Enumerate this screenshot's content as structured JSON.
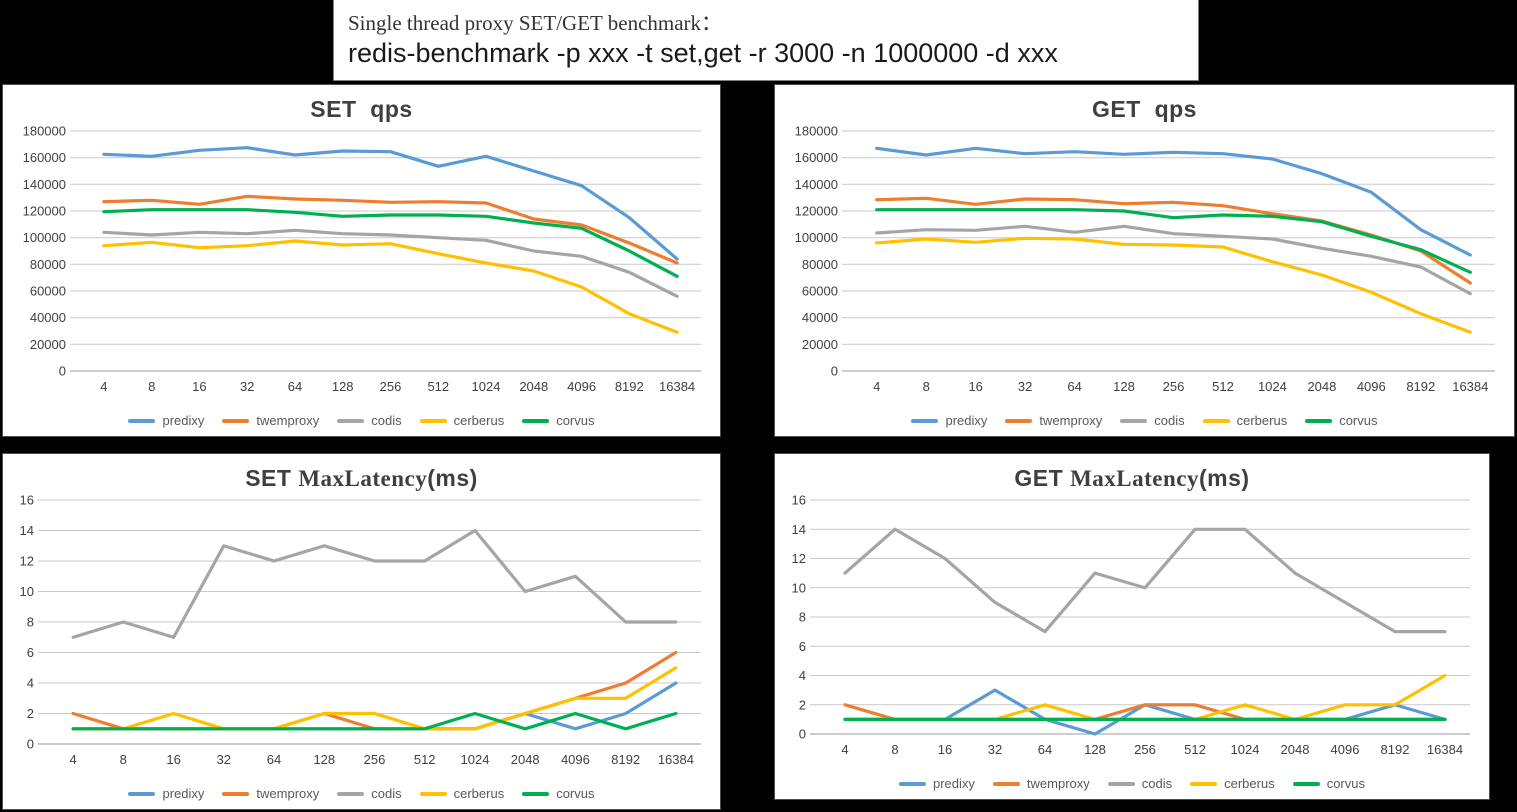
{
  "header": {
    "line1": "Single thread proxy SET/GET benchmark：",
    "line2": "redis-benchmark -p xxx -t set,get -r 3000 -n 1000000 -d xxx"
  },
  "style": {
    "background": "#000000",
    "panel_background": "#ffffff",
    "gridline_color": "#c9c9c9",
    "axis_color": "#9a9a9a",
    "text_color": "#404040",
    "series_colors": {
      "predixy": "#5B9BD5",
      "twemproxy": "#ED7D31",
      "codis": "#A5A5A5",
      "cerberus": "#FFC000",
      "corvus": "#00B050"
    }
  },
  "chart_data": [
    {
      "type": "line",
      "title_parts": [
        "SET  qps",
        "",
        ""
      ],
      "categories": [
        "4",
        "8",
        "16",
        "32",
        "64",
        "128",
        "256",
        "512",
        "1024",
        "2048",
        "4096",
        "8192",
        "16384"
      ],
      "xlabel": "",
      "ylabel": "",
      "ylim": [
        0,
        180000
      ],
      "ystep": 20000,
      "grid": true,
      "legend_position": "bottom",
      "series": [
        {
          "name": "predixy",
          "color": "#5B9BD5",
          "values": [
            162500,
            161000,
            165500,
            167500,
            162000,
            165000,
            164500,
            153500,
            161000,
            150000,
            139000,
            115000,
            84000
          ]
        },
        {
          "name": "twemproxy",
          "color": "#ED7D31",
          "values": [
            127000,
            128000,
            125000,
            131000,
            129000,
            128000,
            126500,
            127000,
            126000,
            114000,
            109500,
            96000,
            81000
          ]
        },
        {
          "name": "codis",
          "color": "#A5A5A5",
          "values": [
            104000,
            102000,
            104000,
            103000,
            105500,
            103000,
            102000,
            100000,
            98000,
            90000,
            86000,
            74000,
            56000
          ]
        },
        {
          "name": "cerberus",
          "color": "#FFC000",
          "values": [
            94000,
            96500,
            92500,
            94000,
            97500,
            94500,
            95500,
            88000,
            81000,
            75000,
            63000,
            43000,
            29000
          ]
        },
        {
          "name": "corvus",
          "color": "#00B050",
          "values": [
            119500,
            121000,
            121000,
            121000,
            119000,
            116000,
            117000,
            117000,
            116000,
            111000,
            107000,
            90000,
            71000
          ]
        }
      ]
    },
    {
      "type": "line",
      "title_parts": [
        "GET  qps",
        "",
        ""
      ],
      "categories": [
        "4",
        "8",
        "16",
        "32",
        "64",
        "128",
        "256",
        "512",
        "1024",
        "2048",
        "4096",
        "8192",
        "16384"
      ],
      "xlabel": "",
      "ylabel": "",
      "ylim": [
        0,
        180000
      ],
      "ystep": 20000,
      "grid": true,
      "legend_position": "bottom",
      "series": [
        {
          "name": "predixy",
          "color": "#5B9BD5",
          "values": [
            167000,
            162000,
            167000,
            163000,
            164500,
            162500,
            164000,
            163000,
            159000,
            148000,
            134000,
            106000,
            87000
          ]
        },
        {
          "name": "twemproxy",
          "color": "#ED7D31",
          "values": [
            128500,
            129500,
            125000,
            129000,
            128500,
            125500,
            126500,
            124000,
            118000,
            112500,
            102000,
            90000,
            66000
          ]
        },
        {
          "name": "codis",
          "color": "#A5A5A5",
          "values": [
            103500,
            106000,
            105500,
            108500,
            104000,
            108500,
            103000,
            101000,
            99000,
            92000,
            86000,
            78000,
            58000
          ]
        },
        {
          "name": "cerberus",
          "color": "#FFC000",
          "values": [
            96000,
            99000,
            96500,
            99500,
            99000,
            95000,
            94500,
            93000,
            82000,
            72000,
            59000,
            43000,
            29000
          ]
        },
        {
          "name": "corvus",
          "color": "#00B050",
          "values": [
            121000,
            121000,
            121000,
            121000,
            121000,
            120000,
            115000,
            117000,
            116000,
            112000,
            101000,
            91000,
            74000
          ]
        }
      ]
    },
    {
      "type": "line",
      "title_parts": [
        "SET ",
        "MaxLatency",
        "(ms)"
      ],
      "categories": [
        "4",
        "8",
        "16",
        "32",
        "64",
        "128",
        "256",
        "512",
        "1024",
        "2048",
        "4096",
        "8192",
        "16384"
      ],
      "xlabel": "",
      "ylabel": "",
      "ylim": [
        0,
        16
      ],
      "ystep": 2,
      "grid": true,
      "legend_position": "bottom",
      "series": [
        {
          "name": "predixy",
          "color": "#5B9BD5",
          "values": [
            1,
            1,
            1,
            1,
            1,
            1,
            1,
            1,
            1,
            2,
            1,
            2,
            4
          ]
        },
        {
          "name": "twemproxy",
          "color": "#ED7D31",
          "values": [
            2,
            1,
            1,
            1,
            1,
            2,
            1,
            1,
            1,
            2,
            3,
            4,
            6
          ]
        },
        {
          "name": "codis",
          "color": "#A5A5A5",
          "values": [
            7,
            8,
            7,
            13,
            12,
            13,
            12,
            12,
            14,
            10,
            11,
            8,
            8
          ]
        },
        {
          "name": "cerberus",
          "color": "#FFC000",
          "values": [
            1,
            1,
            2,
            1,
            1,
            2,
            2,
            1,
            1,
            2,
            3,
            3,
            5
          ]
        },
        {
          "name": "corvus",
          "color": "#00B050",
          "values": [
            1,
            1,
            1,
            1,
            1,
            1,
            1,
            1,
            2,
            1,
            2,
            1,
            2
          ]
        }
      ]
    },
    {
      "type": "line",
      "title_parts": [
        "GET ",
        "MaxLatency",
        "(ms)"
      ],
      "categories": [
        "4",
        "8",
        "16",
        "32",
        "64",
        "128",
        "256",
        "512",
        "1024",
        "2048",
        "4096",
        "8192",
        "16384"
      ],
      "xlabel": "",
      "ylabel": "",
      "ylim": [
        0,
        16
      ],
      "ystep": 2,
      "grid": true,
      "legend_position": "bottom",
      "series": [
        {
          "name": "predixy",
          "color": "#5B9BD5",
          "values": [
            1,
            1,
            1,
            3,
            1,
            0,
            2,
            1,
            1,
            1,
            1,
            2,
            1
          ]
        },
        {
          "name": "twemproxy",
          "color": "#ED7D31",
          "values": [
            2,
            1,
            1,
            1,
            1,
            1,
            2,
            2,
            1,
            1,
            1,
            1,
            1
          ]
        },
        {
          "name": "codis",
          "color": "#A5A5A5",
          "values": [
            11,
            14,
            12,
            9,
            7,
            11,
            10,
            14,
            14,
            11,
            9,
            7,
            7
          ]
        },
        {
          "name": "cerberus",
          "color": "#FFC000",
          "values": [
            1,
            1,
            1,
            1,
            2,
            1,
            1,
            1,
            2,
            1,
            2,
            2,
            4
          ]
        },
        {
          "name": "corvus",
          "color": "#00B050",
          "values": [
            1,
            1,
            1,
            1,
            1,
            1,
            1,
            1,
            1,
            1,
            1,
            1,
            1
          ]
        }
      ]
    }
  ]
}
